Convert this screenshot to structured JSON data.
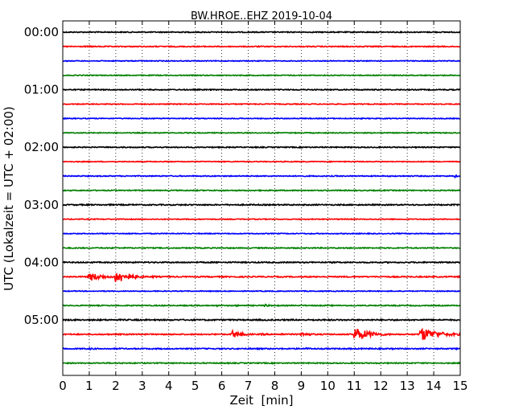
{
  "chart_data": {
    "type": "line",
    "title": "BW.HROE..EHZ 2019-10-04",
    "xlabel": "Zeit  [min]",
    "ylabel": "UTC (Lokalzeit = UTC + 02:00)",
    "xlim": [
      0,
      15
    ],
    "x_ticks": [
      "0",
      "1",
      "2",
      "3",
      "4",
      "5",
      "6",
      "7",
      "8",
      "9",
      "10",
      "11",
      "12",
      "13",
      "14",
      "15"
    ],
    "y_ticks": [
      "00:00",
      "01:00",
      "02:00",
      "03:00",
      "04:00",
      "05:00"
    ],
    "grid": "vertical dotted",
    "colors": [
      "#000000",
      "#ff0000",
      "#0000ff",
      "#008000"
    ],
    "traces": [
      {
        "start": "00:00",
        "color": "#000000",
        "noise": 0.6
      },
      {
        "start": "00:15",
        "color": "#ff0000",
        "noise": 0.6,
        "bursts": [
          {
            "t": 1.0,
            "amp": 1.2,
            "dur": 0.3
          }
        ]
      },
      {
        "start": "00:30",
        "color": "#0000ff",
        "noise": 0.5
      },
      {
        "start": "00:45",
        "color": "#008000",
        "noise": 0.5
      },
      {
        "start": "01:00",
        "color": "#000000",
        "noise": 0.6
      },
      {
        "start": "01:15",
        "color": "#ff0000",
        "noise": 0.5
      },
      {
        "start": "01:30",
        "color": "#0000ff",
        "noise": 0.5
      },
      {
        "start": "01:45",
        "color": "#008000",
        "noise": 0.5
      },
      {
        "start": "02:00",
        "color": "#000000",
        "noise": 0.6
      },
      {
        "start": "02:15",
        "color": "#ff0000",
        "noise": 0.5
      },
      {
        "start": "02:30",
        "color": "#0000ff",
        "noise": 0.6,
        "bursts": [
          {
            "t": 14.8,
            "amp": 2.0,
            "dur": 0.1
          }
        ]
      },
      {
        "start": "02:45",
        "color": "#008000",
        "noise": 0.6
      },
      {
        "start": "03:00",
        "color": "#000000",
        "noise": 0.7
      },
      {
        "start": "03:15",
        "color": "#ff0000",
        "noise": 0.5,
        "bursts": [
          {
            "t": 7.2,
            "amp": 0.8,
            "dur": 0.2
          }
        ]
      },
      {
        "start": "03:30",
        "color": "#0000ff",
        "noise": 0.5
      },
      {
        "start": "03:45",
        "color": "#008000",
        "noise": 0.6
      },
      {
        "start": "04:00",
        "color": "#000000",
        "noise": 0.7
      },
      {
        "start": "04:15",
        "color": "#ff0000",
        "noise": 0.7,
        "bursts": [
          {
            "t": 1.0,
            "amp": 6.0,
            "dur": 0.5
          },
          {
            "t": 2.0,
            "amp": 9.0,
            "dur": 0.5
          },
          {
            "t": 3.4,
            "amp": 1.5,
            "dur": 0.3
          }
        ]
      },
      {
        "start": "04:30",
        "color": "#0000ff",
        "noise": 0.5
      },
      {
        "start": "04:45",
        "color": "#008000",
        "noise": 0.6,
        "bursts": [
          {
            "t": 5.8,
            "amp": 1.0,
            "dur": 0.4
          },
          {
            "t": 6.5,
            "amp": 1.2,
            "dur": 0.3
          },
          {
            "t": 7.6,
            "amp": 2.2,
            "dur": 0.2
          },
          {
            "t": 9.0,
            "amp": 1.0,
            "dur": 0.2
          }
        ]
      },
      {
        "start": "05:00",
        "color": "#000000",
        "noise": 0.8
      },
      {
        "start": "05:15",
        "color": "#ff0000",
        "noise": 0.7,
        "bursts": [
          {
            "t": 6.4,
            "amp": 5.0,
            "dur": 0.4
          },
          {
            "t": 7.5,
            "amp": 1.5,
            "dur": 0.3
          },
          {
            "t": 8.2,
            "amp": 1.5,
            "dur": 0.3
          },
          {
            "t": 9.0,
            "amp": 3.0,
            "dur": 0.4
          },
          {
            "t": 11.0,
            "amp": 9.0,
            "dur": 0.6
          },
          {
            "t": 13.5,
            "amp": 9.0,
            "dur": 0.7
          }
        ]
      },
      {
        "start": "05:30",
        "color": "#0000ff",
        "noise": 0.7,
        "bursts": [
          {
            "t": 1.0,
            "amp": 1.3,
            "dur": 0.5
          },
          {
            "t": 9.2,
            "amp": 1.3,
            "dur": 0.4
          }
        ]
      },
      {
        "start": "05:45",
        "color": "#008000",
        "noise": 0.6
      }
    ]
  }
}
